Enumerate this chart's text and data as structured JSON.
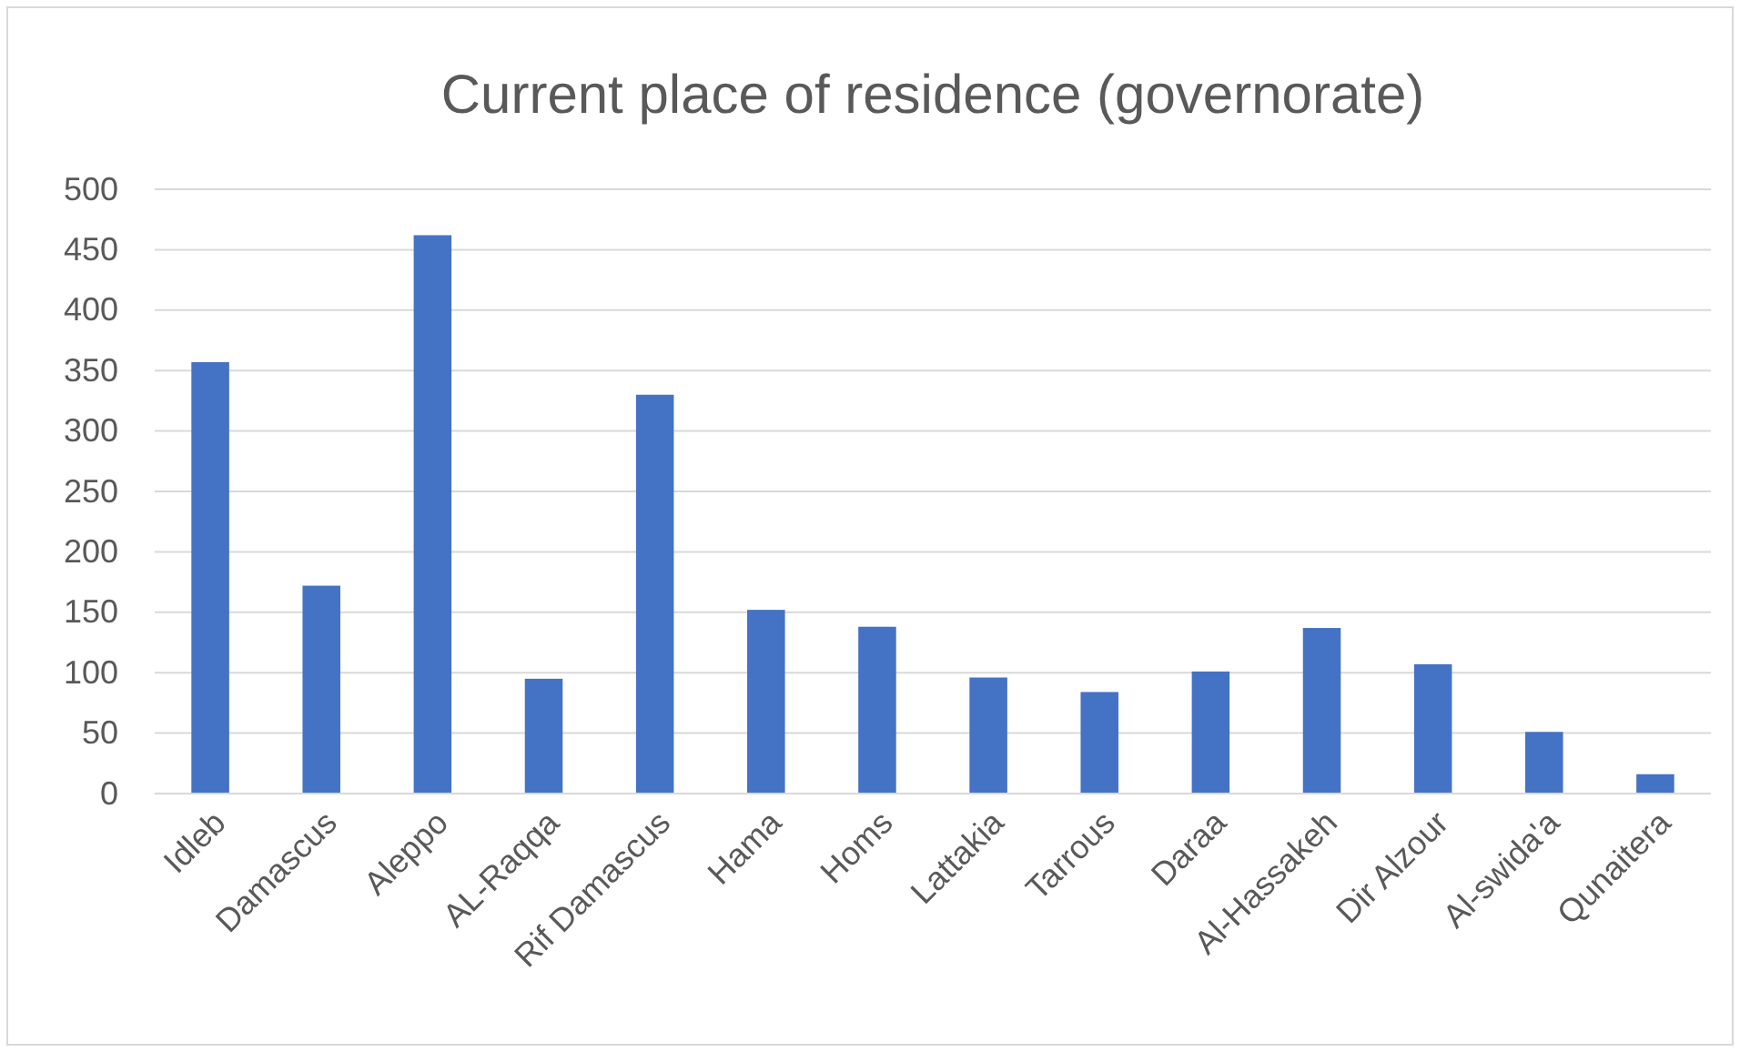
{
  "chart_data": {
    "type": "bar",
    "title": "Current place of residence (governorate)",
    "categories": [
      "Idleb",
      "Damascus",
      "Aleppo",
      "AL-Raqqa",
      "Rif Damascus",
      "Hama",
      "Homs",
      "Lattakia",
      "Tarrous",
      "Daraa",
      "Al-Hassakeh",
      "Dir Alzour",
      "Al-swida'a",
      "Qunaitera"
    ],
    "values": [
      357,
      172,
      462,
      95,
      330,
      152,
      138,
      96,
      84,
      101,
      137,
      107,
      51,
      16
    ],
    "color": "#4472c4",
    "ylim": [
      0,
      500
    ],
    "yticks": [
      0,
      50,
      100,
      150,
      200,
      250,
      300,
      350,
      400,
      450,
      500
    ],
    "grid": "y"
  }
}
